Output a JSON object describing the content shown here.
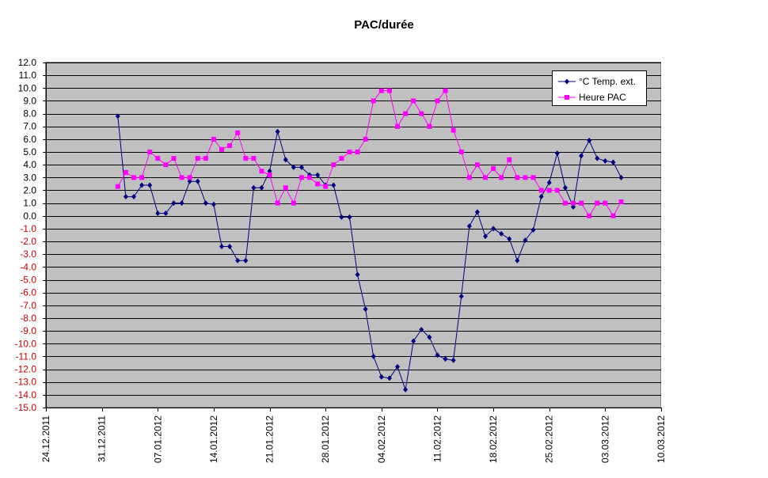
{
  "chart_data": {
    "type": "line",
    "title": "PAC/durée",
    "xlabel": "",
    "ylabel": "",
    "ylim": [
      -15,
      12
    ],
    "ytick_step": 1,
    "xlim": [
      "24.12.2011",
      "10.03.2012"
    ],
    "x_tick_labels": [
      "24.12.2011",
      "31.12.2011",
      "07.01.2012",
      "14.01.2012",
      "21.01.2012",
      "28.01.2012",
      "04.02.2012",
      "11.02.2012",
      "18.02.2012",
      "25.02.2012",
      "03.03.2012",
      "10.03.2012"
    ],
    "grid": true,
    "background": "#c0c0c0",
    "legend_position": "top-right",
    "dates": [
      "02.01.2012",
      "03.01.2012",
      "04.01.2012",
      "05.01.2012",
      "06.01.2012",
      "07.01.2012",
      "08.01.2012",
      "09.01.2012",
      "10.01.2012",
      "11.01.2012",
      "12.01.2012",
      "13.01.2012",
      "14.01.2012",
      "15.01.2012",
      "16.01.2012",
      "17.01.2012",
      "18.01.2012",
      "19.01.2012",
      "20.01.2012",
      "21.01.2012",
      "22.01.2012",
      "23.01.2012",
      "24.01.2012",
      "25.01.2012",
      "26.01.2012",
      "27.01.2012",
      "28.01.2012",
      "29.01.2012",
      "30.01.2012",
      "31.01.2012",
      "01.02.2012",
      "02.02.2012",
      "03.02.2012",
      "04.02.2012",
      "05.02.2012",
      "06.02.2012",
      "07.02.2012",
      "08.02.2012",
      "09.02.2012",
      "10.02.2012",
      "11.02.2012",
      "12.02.2012",
      "13.02.2012",
      "14.02.2012",
      "15.02.2012",
      "16.02.2012",
      "17.02.2012",
      "18.02.2012",
      "19.02.2012",
      "20.02.2012",
      "21.02.2012",
      "22.02.2012",
      "23.02.2012",
      "24.02.2012",
      "25.02.2012",
      "26.02.2012",
      "27.02.2012",
      "28.02.2012",
      "29.02.2012",
      "01.03.2012",
      "02.03.2012",
      "03.03.2012",
      "04.03.2012",
      "05.03.2012"
    ],
    "series": [
      {
        "name": "°C Temp. ext.",
        "color": "#000080",
        "marker": "diamond",
        "values": [
          7.8,
          1.5,
          1.5,
          2.4,
          2.4,
          0.2,
          0.2,
          1.0,
          1.0,
          2.7,
          2.7,
          1.0,
          0.9,
          -2.4,
          -2.4,
          -3.5,
          -3.5,
          2.2,
          2.2,
          3.5,
          6.6,
          4.4,
          3.8,
          3.8,
          3.2,
          3.2,
          2.4,
          2.4,
          -0.1,
          -0.1,
          -4.6,
          -7.3,
          -11.0,
          -12.6,
          -12.7,
          -11.8,
          -13.6,
          -9.8,
          -8.9,
          -9.5,
          -10.9,
          -11.2,
          -11.3,
          -6.3,
          -0.8,
          0.3,
          -1.6,
          -1.0,
          -1.4,
          -1.8,
          -3.5,
          -1.9,
          -1.1,
          1.5,
          2.6,
          4.9,
          2.2,
          0.7,
          4.7,
          5.9,
          4.5,
          4.3,
          4.2,
          3.0
        ]
      },
      {
        "name": "Heure PAC",
        "color": "#ff00ff",
        "marker": "square",
        "values": [
          2.3,
          3.4,
          3.0,
          3.0,
          5.0,
          4.5,
          4.0,
          4.5,
          3.0,
          3.0,
          4.5,
          4.5,
          6.0,
          5.2,
          5.5,
          6.5,
          4.5,
          4.5,
          3.5,
          3.2,
          1.0,
          2.2,
          1.0,
          3.0,
          3.0,
          2.5,
          2.3,
          4.0,
          4.5,
          5.0,
          5.0,
          6.0,
          9.0,
          9.8,
          9.8,
          7.0,
          8.0,
          9.0,
          8.0,
          7.0,
          9.0,
          9.8,
          6.7,
          5.0,
          3.0,
          4.0,
          3.0,
          3.7,
          3.0,
          4.4,
          3.0,
          3.0,
          3.0,
          2.0,
          2.0,
          2.0,
          1.0,
          1.0,
          1.0,
          0.0,
          1.0,
          1.0,
          0.0,
          1.1
        ]
      }
    ]
  }
}
